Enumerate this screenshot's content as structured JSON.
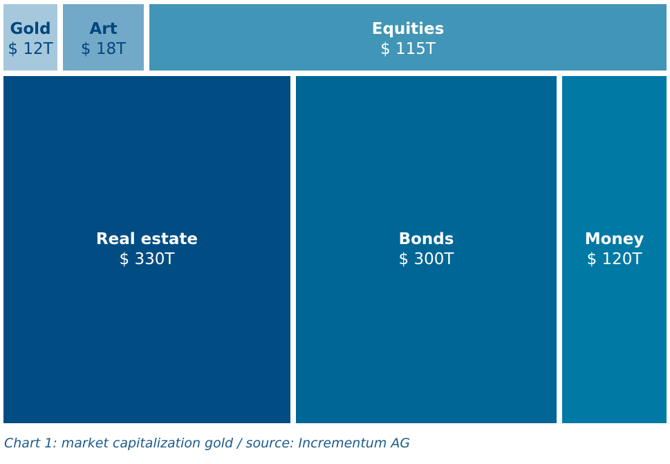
{
  "chart_data": {
    "type": "treemap",
    "unit": "$ T",
    "items": [
      {
        "id": "gold",
        "name": "Gold",
        "value": 12,
        "label": "$ 12T",
        "color": "#a6c8dc",
        "text_color": "#00467f"
      },
      {
        "id": "art",
        "name": "Art",
        "value": 18,
        "label": "$ 18T",
        "color": "#72a9c8",
        "text_color": "#00467f"
      },
      {
        "id": "equities",
        "name": "Equities",
        "value": 115,
        "label": "$ 115T",
        "color": "#4195b6",
        "text_color": "#ffffff"
      },
      {
        "id": "real-estate",
        "name": "Real estate",
        "value": 330,
        "label": "$ 330T",
        "color": "#004c83",
        "text_color": "#ffffff"
      },
      {
        "id": "bonds",
        "name": "Bonds",
        "value": 300,
        "label": "$ 300T",
        "color": "#006696",
        "text_color": "#ffffff"
      },
      {
        "id": "money",
        "name": "Money",
        "value": 120,
        "label": "$ 120T",
        "color": "#0079a5",
        "text_color": "#ffffff"
      }
    ]
  },
  "caption": "Chart 1: market capitalization gold / source: Incrementum AG"
}
